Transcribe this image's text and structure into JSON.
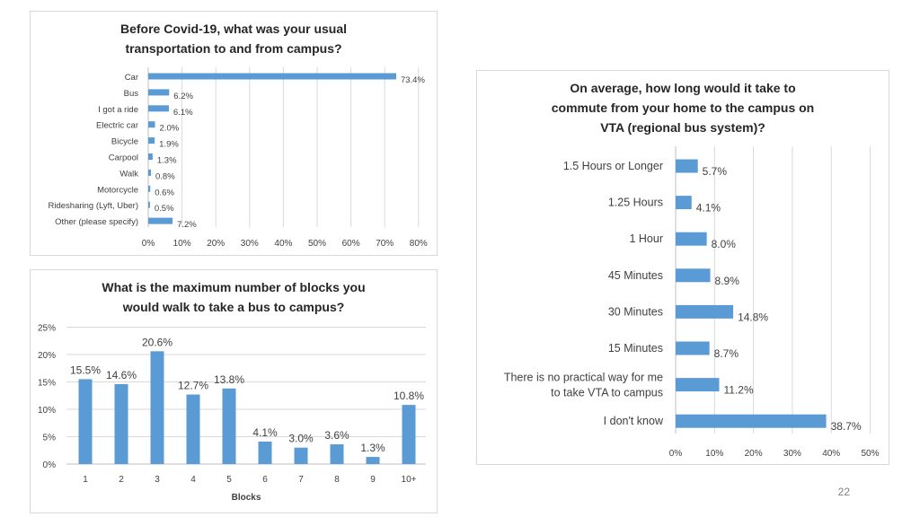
{
  "page_number": "22",
  "chart_data": [
    {
      "type": "bar",
      "orientation": "horizontal",
      "title": "Before Covid-19, what was your usual\ntransportation to and from campus?",
      "categories": [
        "Car",
        "Bus",
        "I got a ride",
        "Electric car",
        "Bicycle",
        "Carpool",
        "Walk",
        "Motorcycle",
        "Ridesharing (Lyft, Uber)",
        "Other (please specify)"
      ],
      "values": [
        73.4,
        6.2,
        6.1,
        2.0,
        1.9,
        1.3,
        0.8,
        0.6,
        0.5,
        7.2
      ],
      "labels": [
        "73.4%",
        "6.2%",
        "6.1%",
        "2.0%",
        "1.9%",
        "1.3%",
        "0.8%",
        "0.6%",
        "0.5%",
        "7.2%"
      ],
      "xlim": [
        0,
        80
      ],
      "xticks": [
        "0%",
        "10%",
        "20%",
        "30%",
        "40%",
        "50%",
        "60%",
        "70%",
        "80%"
      ],
      "grid": true,
      "color": "#5b9bd5"
    },
    {
      "type": "bar",
      "orientation": "vertical",
      "title": "What is the maximum number of blocks you\nwould walk to take a bus to campus?",
      "categories": [
        "1",
        "2",
        "3",
        "4",
        "5",
        "6",
        "7",
        "8",
        "9",
        "10+"
      ],
      "values": [
        15.5,
        14.6,
        20.6,
        12.7,
        13.8,
        4.1,
        3.0,
        3.6,
        1.3,
        10.8
      ],
      "labels": [
        "15.5%",
        "14.6%",
        "20.6%",
        "12.7%",
        "13.8%",
        "4.1%",
        "3.0%",
        "3.6%",
        "1.3%",
        "10.8%"
      ],
      "xlabel": "Blocks",
      "ylim": [
        0,
        25
      ],
      "yticks": [
        "0%",
        "5%",
        "10%",
        "15%",
        "20%",
        "25%"
      ],
      "grid": true,
      "color": "#5b9bd5"
    },
    {
      "type": "bar",
      "orientation": "horizontal",
      "title": "On average, how long would it take to\ncommute from your home to the campus on\nVTA (regional bus system)?",
      "categories": [
        "1.5 Hours or Longer",
        "1.25 Hours",
        "1 Hour",
        "45 Minutes",
        "30 Minutes",
        "15 Minutes",
        "There is no practical way for me\nto take VTA to campus",
        "I don't know"
      ],
      "values": [
        5.7,
        4.1,
        8.0,
        8.9,
        14.8,
        8.7,
        11.2,
        38.7
      ],
      "labels": [
        "5.7%",
        "4.1%",
        "8.0%",
        "8.9%",
        "14.8%",
        "8.7%",
        "11.2%",
        "38.7%"
      ],
      "xlim": [
        0,
        50
      ],
      "xticks": [
        "0%",
        "10%",
        "20%",
        "30%",
        "40%",
        "50%"
      ],
      "grid": true,
      "color": "#5b9bd5"
    }
  ]
}
